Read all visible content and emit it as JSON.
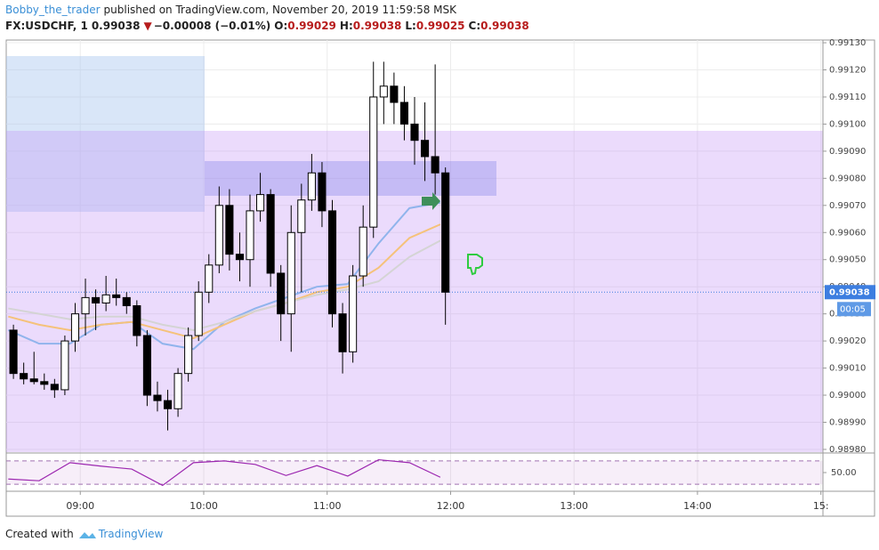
{
  "header": {
    "author": "Bobby_the_trader",
    "published": "published on TradingView.com, November 20, 2019 11:59:58 MSK",
    "symbol": "FX:USDCHF, 1",
    "last": "0.99038",
    "arrow": "▼",
    "change": "−0.00008 (−0.01%)",
    "ohlc": [
      {
        "label": "O:",
        "value": "0.99029"
      },
      {
        "label": "H:",
        "value": "0.99038"
      },
      {
        "label": "L:",
        "value": "0.99025"
      },
      {
        "label": "C:",
        "value": "0.99038"
      }
    ]
  },
  "chart_data": {
    "type": "candlestick",
    "x": [
      "08:25",
      "08:30",
      "08:35",
      "08:40",
      "08:45",
      "08:50",
      "08:55",
      "09:00",
      "09:05",
      "09:10",
      "09:15",
      "09:20",
      "09:25",
      "09:30",
      "09:35",
      "09:40",
      "09:45",
      "09:50",
      "09:55",
      "10:00",
      "10:05",
      "10:10",
      "10:15",
      "10:20",
      "10:25",
      "10:30",
      "10:35",
      "10:40",
      "10:45",
      "10:50",
      "10:55",
      "11:00",
      "11:05",
      "11:10",
      "11:15",
      "11:20",
      "11:25",
      "11:30",
      "11:35",
      "11:40",
      "11:45",
      "11:50",
      "11:55"
    ],
    "open": [
      0.99024,
      0.99008,
      0.99006,
      0.99005,
      0.99004,
      0.99002,
      0.9902,
      0.9903,
      0.99036,
      0.99034,
      0.99037,
      0.99036,
      0.99033,
      0.99022,
      0.99,
      0.98998,
      0.98995,
      0.99008,
      0.99022,
      0.99038,
      0.99048,
      0.9907,
      0.99052,
      0.9905,
      0.99068,
      0.99074,
      0.99045,
      0.9903,
      0.9906,
      0.99072,
      0.99082,
      0.99068,
      0.9903,
      0.99016,
      0.99044,
      0.99062,
      0.9911,
      0.99114,
      0.99108,
      0.991,
      0.99094,
      0.99088,
      0.99082
    ],
    "high": [
      0.99026,
      0.99012,
      0.99016,
      0.99008,
      0.99006,
      0.99022,
      0.99034,
      0.99043,
      0.99039,
      0.99044,
      0.99043,
      0.99038,
      0.99035,
      0.99024,
      0.99005,
      0.99002,
      0.9901,
      0.99025,
      0.99042,
      0.99052,
      0.99077,
      0.99076,
      0.9906,
      0.99074,
      0.99082,
      0.99076,
      0.99048,
      0.9907,
      0.99078,
      0.99089,
      0.99086,
      0.99072,
      0.99034,
      0.99048,
      0.9907,
      0.99123,
      0.99123,
      0.99119,
      0.99114,
      0.9911,
      0.99108,
      0.99122,
      0.99084
    ],
    "low": [
      0.99006,
      0.99004,
      0.99004,
      0.99002,
      0.98999,
      0.99,
      0.99016,
      0.99022,
      0.99024,
      0.99031,
      0.99033,
      0.9903,
      0.99018,
      0.98996,
      0.98994,
      0.98987,
      0.98992,
      0.99005,
      0.9902,
      0.99034,
      0.99045,
      0.99046,
      0.99042,
      0.9904,
      0.99064,
      0.9904,
      0.9902,
      0.99016,
      0.99038,
      0.99068,
      0.99062,
      0.99025,
      0.99008,
      0.99012,
      0.9904,
      0.99058,
      0.991,
      0.991,
      0.99094,
      0.99085,
      0.99079,
      0.99074,
      0.99026
    ],
    "close": [
      0.99008,
      0.99006,
      0.99005,
      0.99004,
      0.99002,
      0.9902,
      0.9903,
      0.99036,
      0.99034,
      0.99037,
      0.99036,
      0.99033,
      0.99022,
      0.99,
      0.98998,
      0.98995,
      0.99008,
      0.99022,
      0.99038,
      0.99048,
      0.9907,
      0.99052,
      0.9905,
      0.99068,
      0.99074,
      0.99045,
      0.9903,
      0.9906,
      0.99072,
      0.99082,
      0.99068,
      0.9903,
      0.99016,
      0.99044,
      0.99062,
      0.9911,
      0.99114,
      0.99108,
      0.991,
      0.99094,
      0.99088,
      0.99082,
      0.99038
    ],
    "up_color": "#ffffff",
    "down_color": "#000000",
    "xlim": [
      "08:24",
      "15:01"
    ],
    "xticks": [
      "09:00",
      "10:00",
      "11:00",
      "12:00",
      "13:00",
      "14:00",
      {
        "value": "15:00",
        "label": "15:"
      }
    ],
    "ylim": [
      0.98979,
      0.99131
    ],
    "yticks": [
      {
        "value": 0.9898,
        "label": "0.98980"
      },
      {
        "value": 0.9899,
        "label": "0.98990"
      },
      {
        "value": 0.99,
        "label": "0.99000"
      },
      {
        "value": 0.9901,
        "label": "0.99010"
      },
      {
        "value": 0.9902,
        "label": "0.99020"
      },
      {
        "value": 0.9903,
        "label": "0.99030"
      },
      {
        "value": 0.9904,
        "label": "0.99040"
      },
      {
        "value": 0.9905,
        "label": "0.99050"
      },
      {
        "value": 0.9906,
        "label": "0.99060"
      },
      {
        "value": 0.9907,
        "label": "0.99070"
      },
      {
        "value": 0.9908,
        "label": "0.99080"
      },
      {
        "value": 0.9909,
        "label": "0.99090"
      },
      {
        "value": 0.991,
        "label": "0.99100"
      },
      {
        "value": 0.9911,
        "label": "0.99110"
      },
      {
        "value": 0.9912,
        "label": "0.99120"
      },
      {
        "value": 0.9913,
        "label": "0.99130"
      }
    ],
    "grid": true,
    "last_price": {
      "value": 0.99038,
      "label": "0.99038"
    },
    "countdown": "00:05",
    "indicator_x": [
      "08:25",
      "08:40",
      "08:55",
      "09:10",
      "09:25",
      "09:40",
      "09:55",
      "10:10",
      "10:25",
      "10:40",
      "10:55",
      "11:10",
      "11:25",
      "11:40",
      "11:55"
    ],
    "ma_lines": [
      {
        "color": "#90b4ec",
        "values": [
          0.99024,
          0.99019,
          0.99019,
          0.99026,
          0.99027,
          0.99019,
          0.99017,
          0.99027,
          0.99032,
          0.99036,
          0.9904,
          0.99041,
          0.99056,
          0.99069,
          0.99071
        ]
      },
      {
        "color": "#f5c27a",
        "values": [
          0.99029,
          0.99026,
          0.99024,
          0.99026,
          0.99027,
          0.99024,
          0.99021,
          0.99026,
          0.99031,
          0.99034,
          0.99038,
          0.9904,
          0.99047,
          0.99058,
          0.99063
        ]
      },
      {
        "color": "#d4d4d4",
        "values": [
          0.99032,
          0.9903,
          0.99028,
          0.99029,
          0.99029,
          0.99026,
          0.99024,
          0.99027,
          0.99031,
          0.99034,
          0.99037,
          0.99039,
          0.99042,
          0.99051,
          0.99057
        ]
      }
    ],
    "rsi": {
      "ylim": [
        18,
        82
      ],
      "yticks": [
        {
          "value": 50,
          "label": "50.00"
        }
      ],
      "levels": [
        30,
        70
      ],
      "color": "#9c27b0",
      "values": [
        39,
        36,
        67,
        61,
        56,
        28,
        67,
        70,
        64,
        45,
        62,
        44,
        72,
        67,
        42
      ]
    }
  },
  "footer": {
    "created": "Created with",
    "brand": "TradingView"
  }
}
